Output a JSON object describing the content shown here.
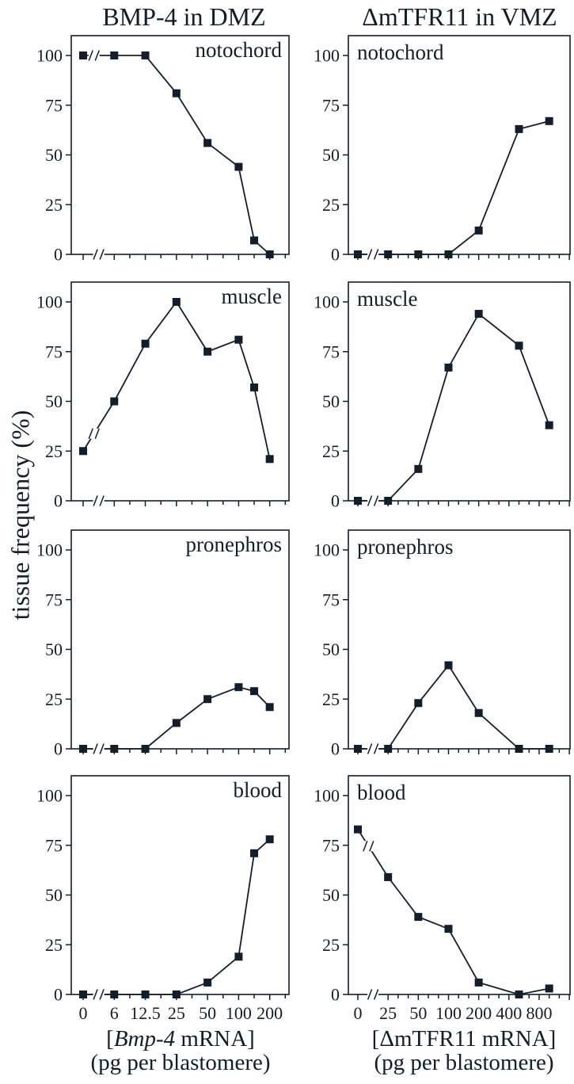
{
  "page": {
    "bg": "#ffffff",
    "ink": "#141e2b"
  },
  "titles": {
    "left": "BMP-4 in DMZ",
    "right": "ΔmTFR11 in VMZ"
  },
  "y_axis": {
    "title": "tissue frequency (%)",
    "ticks": [
      "0",
      "25",
      "50",
      "75",
      "100"
    ]
  },
  "x_axis_left": {
    "tick_labels": [
      "0",
      "6",
      "12.5",
      "25",
      "50",
      "100",
      "200"
    ],
    "axis_break_after_zero": true,
    "label_pre": "[",
    "label_gene": "Bmp-4",
    "label_post": " mRNA]",
    "label_line2": "(pg per blastomere)"
  },
  "x_axis_right": {
    "tick_labels": [
      "0",
      "25",
      "50",
      "100",
      "200",
      "400",
      "800"
    ],
    "axis_break_after_zero": true,
    "label_line1": "[ΔmTFR11 mRNA]",
    "label_line2": "(pg per blastomere)"
  },
  "chart_data": {
    "type": "line",
    "ylabel": "tissue frequency (%)",
    "ylim": [
      0,
      110
    ],
    "grid": false,
    "legend": false,
    "marker": "filled-square",
    "charts": [
      {
        "id": "dmz-notochord",
        "column": "BMP-4 in DMZ",
        "tissue": "notochord",
        "label_pos": "right",
        "x": [
          0,
          6,
          12.5,
          25,
          50,
          100,
          150,
          200
        ],
        "values": [
          100,
          100,
          100,
          81,
          56,
          44,
          7,
          0
        ]
      },
      {
        "id": "dmz-muscle",
        "column": "BMP-4 in DMZ",
        "tissue": "muscle",
        "label_pos": "right",
        "x": [
          0,
          6,
          12.5,
          25,
          50,
          100,
          150,
          200
        ],
        "values": [
          25,
          50,
          79,
          100,
          75,
          81,
          57,
          21
        ]
      },
      {
        "id": "dmz-pronephros",
        "column": "BMP-4 in DMZ",
        "tissue": "pronephros",
        "label_pos": "right",
        "x": [
          0,
          6,
          12.5,
          25,
          50,
          100,
          150,
          200
        ],
        "values": [
          0,
          0,
          0,
          13,
          25,
          31,
          29,
          21
        ]
      },
      {
        "id": "dmz-blood",
        "column": "BMP-4 in DMZ",
        "tissue": "blood",
        "label_pos": "right",
        "x": [
          0,
          6,
          12.5,
          25,
          50,
          100,
          150,
          200
        ],
        "values": [
          0,
          0,
          0,
          0,
          6,
          19,
          71,
          78
        ]
      },
      {
        "id": "vmz-notochord",
        "column": "ΔmTFR11 in VMZ",
        "tissue": "notochord",
        "label_pos": "left",
        "x": [
          0,
          25,
          50,
          100,
          200,
          500,
          1000
        ],
        "values": [
          0,
          0,
          0,
          0,
          12,
          63,
          67
        ]
      },
      {
        "id": "vmz-muscle",
        "column": "ΔmTFR11 in VMZ",
        "tissue": "muscle",
        "label_pos": "left",
        "x": [
          0,
          25,
          50,
          100,
          200,
          500,
          1000
        ],
        "values": [
          0,
          0,
          16,
          67,
          94,
          78,
          38
        ]
      },
      {
        "id": "vmz-pronephros",
        "column": "ΔmTFR11 in VMZ",
        "tissue": "pronephros",
        "label_pos": "left",
        "x": [
          0,
          25,
          50,
          100,
          200,
          500,
          1000
        ],
        "values": [
          0,
          0,
          23,
          42,
          18,
          0,
          0
        ]
      },
      {
        "id": "vmz-blood",
        "column": "ΔmTFR11 in VMZ",
        "tissue": "blood",
        "label_pos": "left",
        "x": [
          0,
          25,
          50,
          100,
          200,
          500,
          1000
        ],
        "values": [
          83,
          59,
          39,
          33,
          6,
          0,
          3
        ]
      }
    ]
  }
}
